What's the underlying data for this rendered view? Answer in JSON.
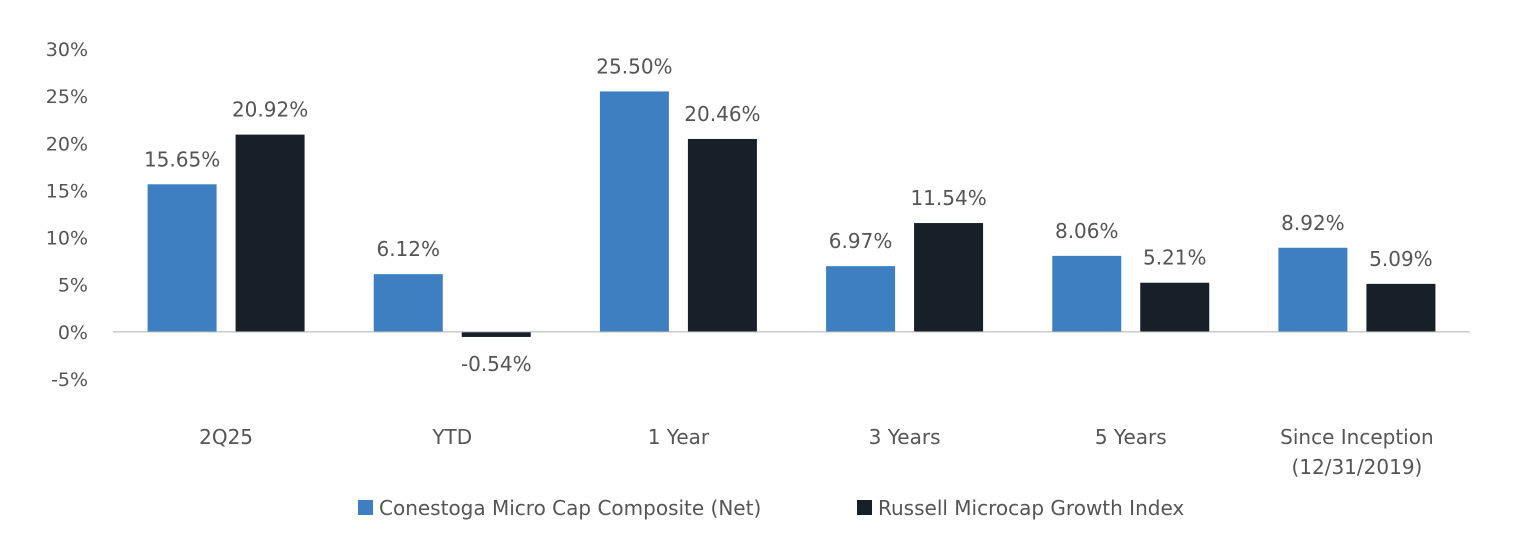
{
  "chart_data": {
    "type": "bar",
    "categories": [
      [
        "2Q25"
      ],
      [
        "YTD"
      ],
      [
        "1 Year"
      ],
      [
        "3 Years"
      ],
      [
        "5 Years"
      ],
      [
        "Since Inception",
        "(12/31/2019)"
      ]
    ],
    "series": [
      {
        "name": "Conestoga Micro Cap Composite (Net)",
        "color": "#3d7fc1",
        "values": [
          15.65,
          6.12,
          25.5,
          6.97,
          8.06,
          8.92
        ],
        "labels": [
          "15.65%",
          "6.12%",
          "25.50%",
          "6.97%",
          "8.06%",
          "8.92%"
        ]
      },
      {
        "name": "Russell Microcap Growth Index",
        "color": "#171f29",
        "values": [
          20.92,
          -0.54,
          20.46,
          11.54,
          5.21,
          5.09
        ],
        "labels": [
          "20.92%",
          "-0.54%",
          "20.46%",
          "11.54%",
          "5.21%",
          "5.09%"
        ]
      }
    ],
    "y_ticks": [
      30,
      25,
      20,
      15,
      10,
      5,
      0,
      -5
    ],
    "y_tick_labels": [
      "30%",
      "25%",
      "20%",
      "15%",
      "10%",
      "5%",
      "0%",
      "-5%"
    ],
    "ylim": [
      -5,
      30
    ],
    "xlabel": "",
    "ylabel": "",
    "grid": false,
    "legend_position": "bottom",
    "axis_color": "#b0b0b0"
  }
}
